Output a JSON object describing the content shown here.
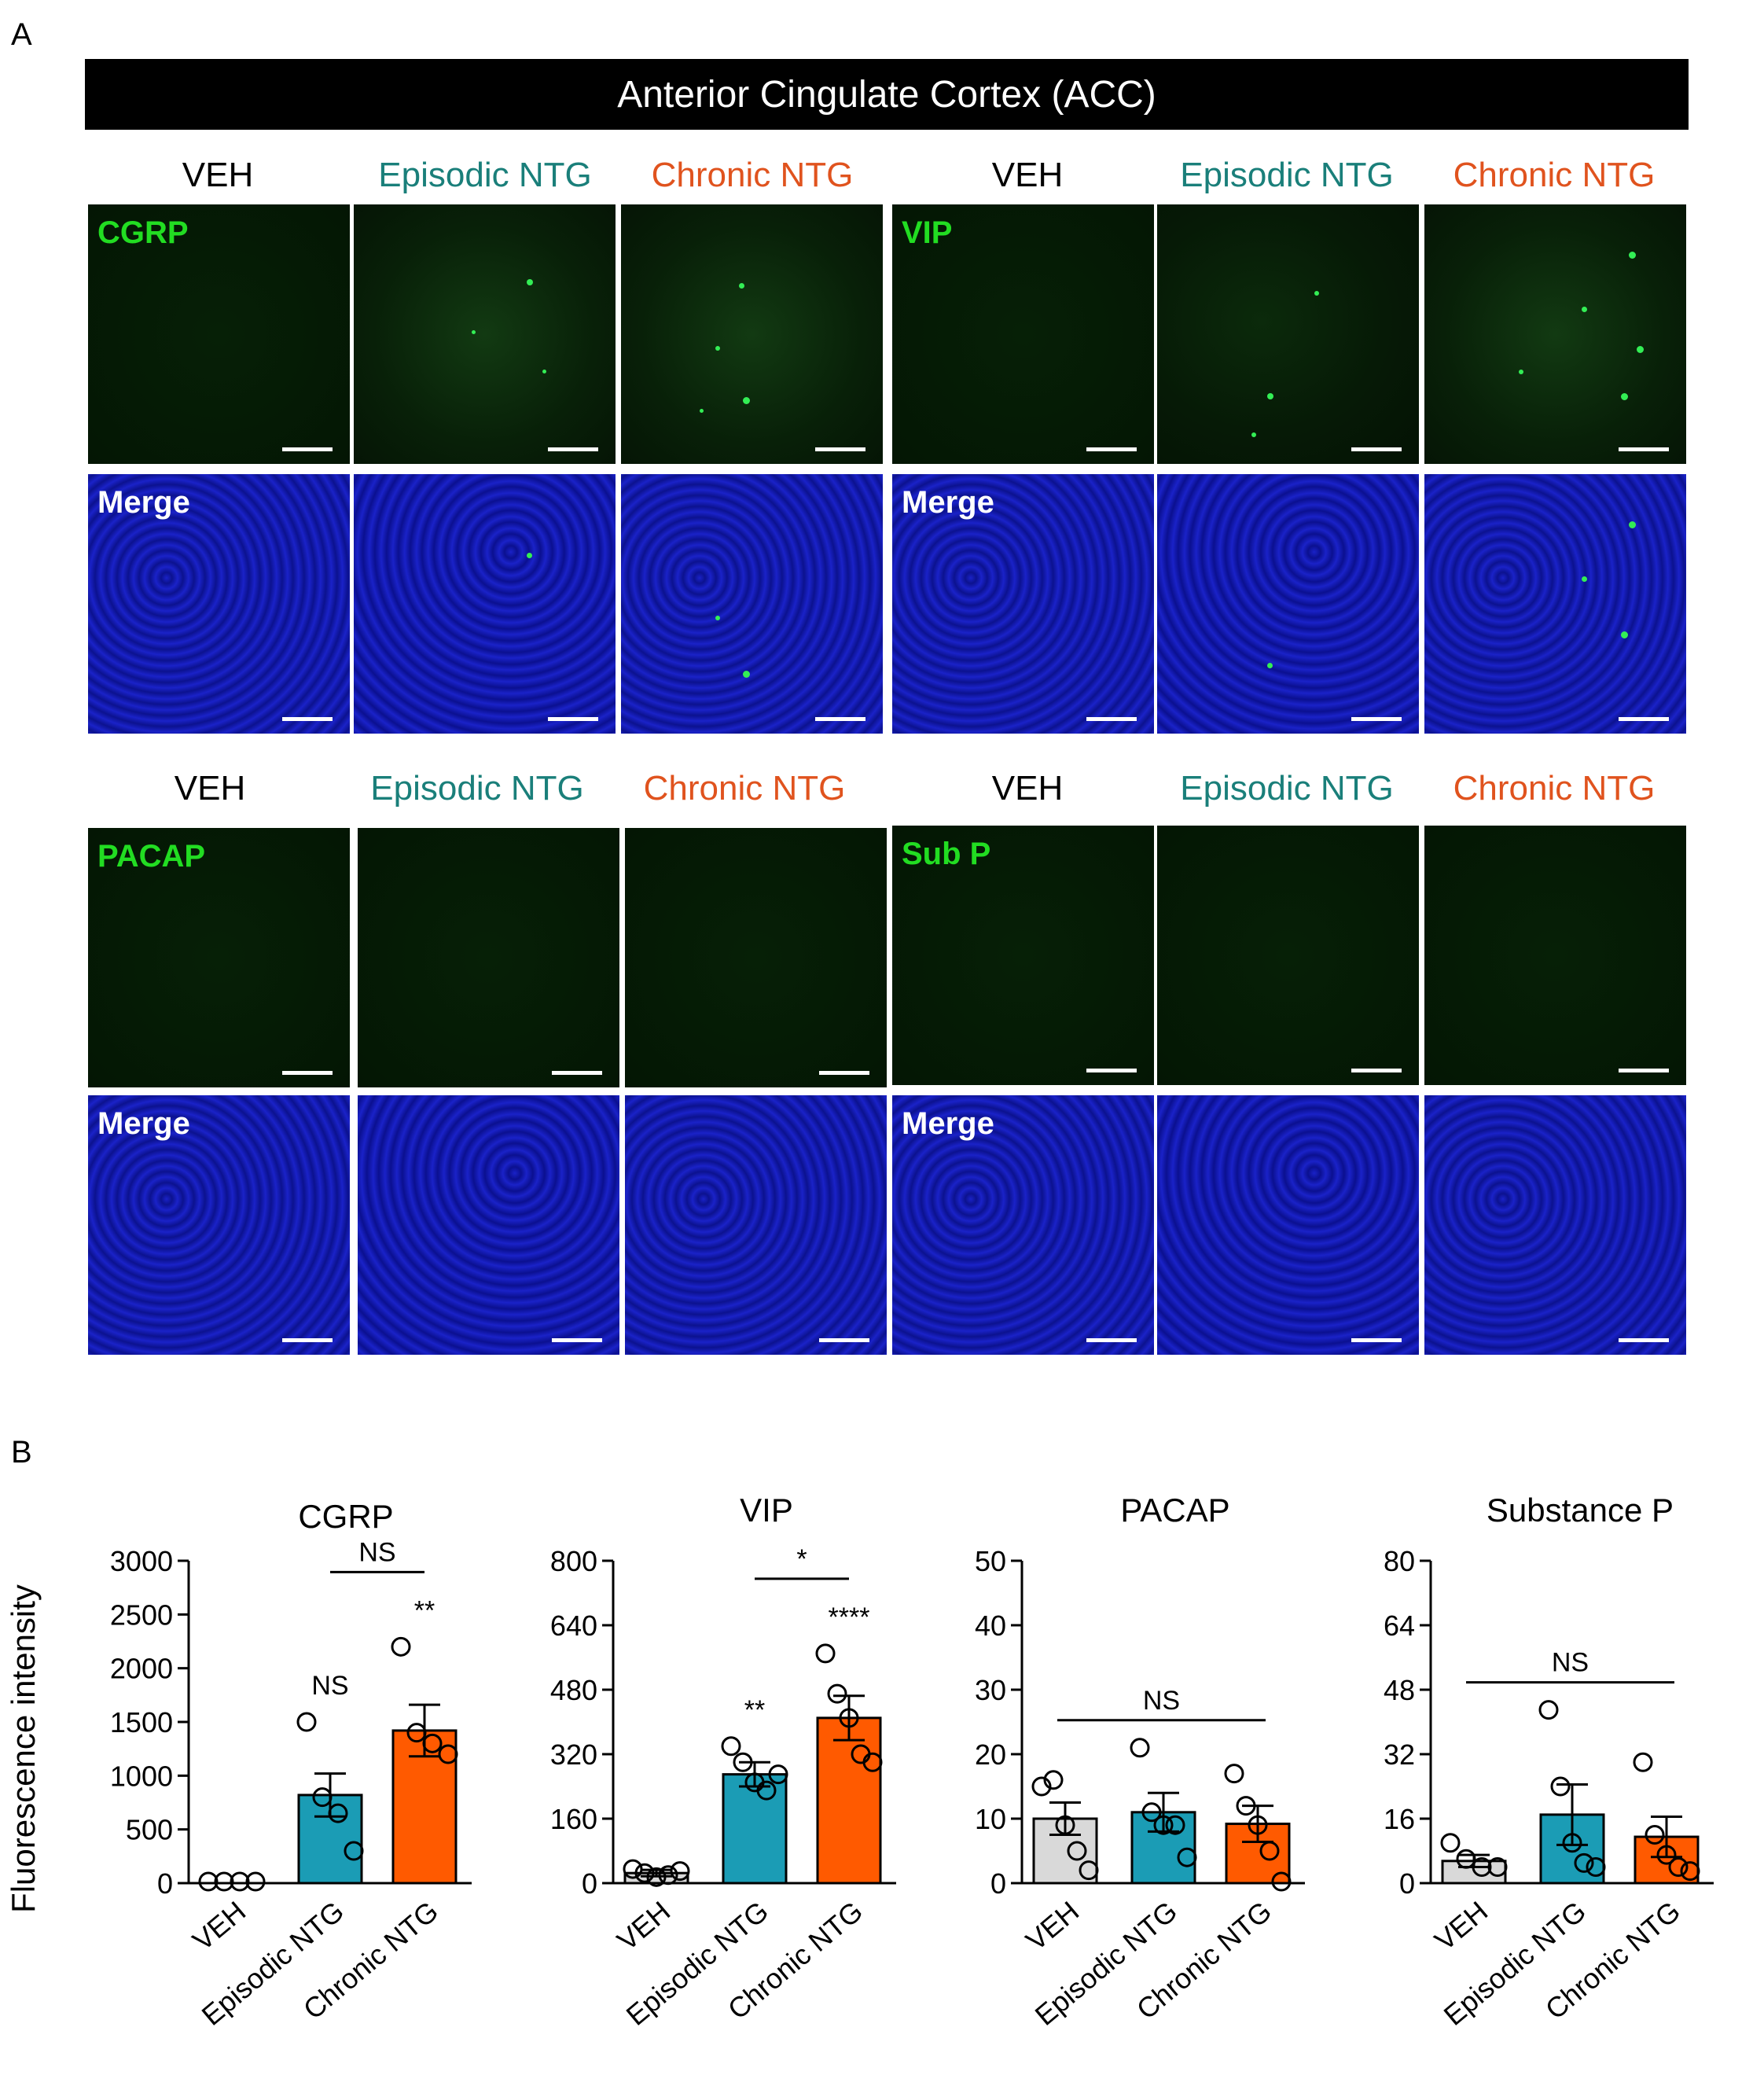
{
  "panel_a_label": "A",
  "panel_b_label": "B",
  "banner_title": "Anterior Cingulate Cortex (ACC)",
  "conditions": [
    "VEH",
    "Episodic NTG",
    "Chronic NTG"
  ],
  "colors": {
    "veh": "#d9d9d9",
    "episodic": "#1b9cb5",
    "chronic": "#ff5a00",
    "episodic_text": "#1a7f7a",
    "chronic_text": "#e0531e"
  },
  "stain_labels": {
    "cgrp": "CGRP",
    "vip": "VIP",
    "pacap": "PACAP",
    "subp": "Sub P",
    "merge": "Merge"
  },
  "ylabel": "Fluorescence intensity",
  "chart_data": [
    {
      "type": "bar",
      "title": "CGRP",
      "categories": [
        "VEH",
        "Episodic NTG",
        "Chronic NTG"
      ],
      "values": [
        0,
        820,
        1420
      ],
      "errors": [
        0,
        200,
        240
      ],
      "points": [
        [
          0,
          0,
          0,
          0
        ],
        [
          1500,
          800,
          650,
          300
        ],
        [
          2200,
          1400,
          1300,
          1200
        ]
      ],
      "ylim": [
        0,
        3000
      ],
      "yticks": [
        0,
        500,
        1000,
        1500,
        2000,
        2500,
        3000
      ],
      "annotations": [
        {
          "text": "NS",
          "x": 1
        },
        {
          "text": "**",
          "x": 2
        }
      ],
      "brackets": [
        {
          "text": "NS",
          "from": 1,
          "to": 2
        }
      ]
    },
    {
      "type": "bar",
      "title": "VIP",
      "categories": [
        "VEH",
        "Episodic NTG",
        "Chronic NTG"
      ],
      "values": [
        25,
        270,
        410
      ],
      "errors": [
        8,
        30,
        55
      ],
      "points": [
        [
          35,
          25,
          15,
          20,
          30
        ],
        [
          340,
          300,
          250,
          230,
          270
        ],
        [
          570,
          470,
          410,
          320,
          300
        ]
      ],
      "ylim": [
        0,
        800
      ],
      "yticks": [
        0,
        160,
        320,
        480,
        640,
        800
      ],
      "annotations": [
        {
          "text": "**",
          "x": 1
        },
        {
          "text": "****",
          "x": 2
        }
      ],
      "brackets": [
        {
          "text": "*",
          "from": 1,
          "to": 2
        }
      ]
    },
    {
      "type": "bar",
      "title": "PACAP",
      "categories": [
        "VEH",
        "Episodic NTG",
        "Chronic NTG"
      ],
      "values": [
        10,
        11,
        9.2
      ],
      "errors": [
        2.5,
        3,
        2.8
      ],
      "points": [
        [
          15,
          16,
          9,
          5,
          2
        ],
        [
          21,
          11,
          9,
          9,
          4
        ],
        [
          17,
          12,
          9,
          5,
          0
        ]
      ],
      "ylim": [
        0,
        50
      ],
      "yticks": [
        0,
        10,
        20,
        30,
        40,
        50
      ],
      "annotations": [],
      "brackets": [
        {
          "text": "NS",
          "from": 0,
          "to": 2
        }
      ]
    },
    {
      "type": "bar",
      "title": "Substance P",
      "categories": [
        "VEH",
        "Episodic NTG",
        "Chronic NTG"
      ],
      "values": [
        5.5,
        17,
        11.5
      ],
      "errors": [
        1.5,
        7.5,
        5
      ],
      "points": [
        [
          10,
          6,
          4,
          4
        ],
        [
          43,
          24,
          10,
          5,
          4
        ],
        [
          30,
          12,
          7,
          4,
          3
        ]
      ],
      "ylim": [
        0,
        80
      ],
      "yticks": [
        0,
        16,
        32,
        48,
        64,
        80
      ],
      "annotations": [],
      "brackets": [
        {
          "text": "NS",
          "from": 0,
          "to": 2
        }
      ]
    }
  ]
}
